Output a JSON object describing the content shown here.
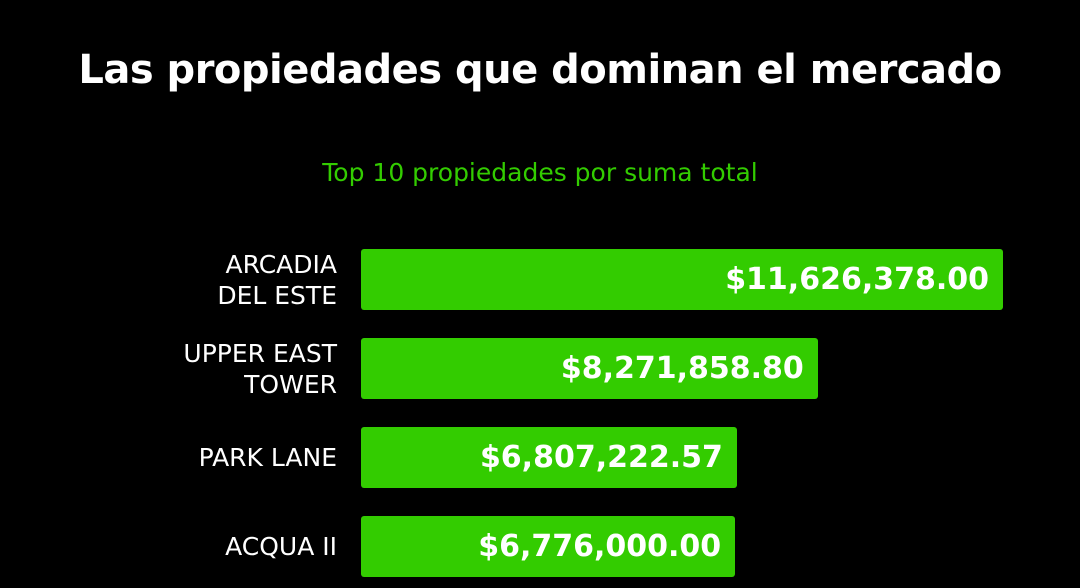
{
  "chart_data": {
    "type": "bar",
    "orientation": "horizontal",
    "title": "Las propiedades que dominan el mercado",
    "subtitle": "Top 10 propiedades por suma total",
    "categories": [
      "ARCADIA DEL ESTE",
      "UPPER EAST TOWER",
      "PARK LANE",
      "ACQUA II"
    ],
    "category_display": [
      "ARCADIA\nDEL ESTE",
      "UPPER EAST\nTOWER",
      "PARK LANE",
      "ACQUA II"
    ],
    "values": [
      11626378.0,
      8271858.8,
      6807222.57,
      6776000.0
    ],
    "value_labels": [
      "$11,626,378.00",
      "$8,271,858.80",
      "$6,807,222.57",
      "$6,776,000.00"
    ],
    "xlabel": "",
    "ylabel": "",
    "grid": false,
    "bar_color": "#33cc00",
    "background": "#000000"
  }
}
